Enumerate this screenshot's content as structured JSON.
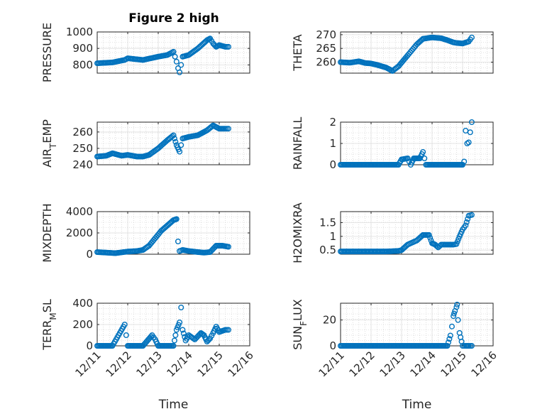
{
  "figure": {
    "title": "Figure 2 high",
    "marker_color": "#0072bd"
  },
  "chart_data": [
    {
      "type": "scatter",
      "title": "Figure 2 high",
      "ylabel": "PRESSURE",
      "xlabel": "",
      "xlim": [
        0,
        5
      ],
      "ylim": [
        750,
        1000
      ],
      "yticks": [
        800,
        900,
        1000
      ],
      "xticks": [
        "12/11",
        "12/12",
        "12/13",
        "12/14",
        "12/15",
        "12/16"
      ],
      "x": [
        0,
        0.5,
        0.9,
        1.0,
        1.5,
        2.0,
        2.3,
        2.5,
        2.55,
        2.6,
        2.65,
        2.7,
        2.75,
        2.8,
        3.0,
        3.3,
        3.6,
        3.7,
        3.8,
        3.9,
        4.0,
        4.2,
        4.3
      ],
      "y": [
        810,
        815,
        830,
        840,
        830,
        850,
        860,
        880,
        850,
        820,
        780,
        755,
        800,
        850,
        860,
        900,
        950,
        960,
        930,
        910,
        920,
        910,
        910
      ]
    },
    {
      "type": "scatter",
      "ylabel": "THETA",
      "xlabel": "",
      "xlim": [
        0,
        5
      ],
      "ylim": [
        256,
        271
      ],
      "yticks": [
        260,
        265,
        270
      ],
      "xticks": [
        "12/11",
        "12/12",
        "12/13",
        "12/14",
        "12/15",
        "12/16"
      ],
      "x": [
        0,
        0.3,
        0.6,
        0.8,
        1.0,
        1.2,
        1.5,
        1.7,
        1.9,
        2.2,
        2.5,
        2.7,
        3.0,
        3.3,
        3.5,
        3.7,
        3.8,
        4.0,
        4.2,
        4.3
      ],
      "y": [
        260,
        259.8,
        260.3,
        259.7,
        259.5,
        259.0,
        258.0,
        256.8,
        258.5,
        262.5,
        266.5,
        268.5,
        269,
        268.7,
        268.0,
        267.2,
        267.0,
        266.8,
        267.5,
        269
      ]
    },
    {
      "type": "scatter",
      "ylabel": "AIR_TEMP",
      "xlabel": "",
      "xlim": [
        0,
        5
      ],
      "ylim": [
        240,
        266
      ],
      "yticks": [
        240,
        250,
        260
      ],
      "xticks": [
        "12/11",
        "12/12",
        "12/13",
        "12/14",
        "12/15",
        "12/16"
      ],
      "x": [
        0,
        0.3,
        0.5,
        0.8,
        1.0,
        1.3,
        1.5,
        1.7,
        2.0,
        2.3,
        2.5,
        2.6,
        2.7,
        2.8,
        3.0,
        3.3,
        3.6,
        3.8,
        4.0,
        4.2,
        4.3
      ],
      "y": [
        245,
        245.5,
        247,
        245.5,
        246,
        245,
        245,
        246,
        250,
        255,
        258,
        252,
        248,
        256,
        257,
        258,
        261,
        264,
        262,
        262,
        262
      ]
    },
    {
      "type": "scatter",
      "ylabel": "RAINFALL",
      "xlabel": "",
      "xlim": [
        0,
        5
      ],
      "ylim": [
        0,
        2
      ],
      "yticks": [
        0,
        1,
        2
      ],
      "xticks": [
        "12/11",
        "12/12",
        "12/13",
        "12/14",
        "12/15",
        "12/16"
      ],
      "x": [
        0,
        0.5,
        1.0,
        1.5,
        1.9,
        2.0,
        2.2,
        2.3,
        2.4,
        2.5,
        2.6,
        2.7,
        2.8,
        3.0,
        3.5,
        3.9,
        4.0,
        4.05,
        4.1,
        4.15,
        4.2,
        4.3
      ],
      "y": [
        0,
        0,
        0,
        0,
        0,
        0.25,
        0.3,
        0,
        0.3,
        0.3,
        0.3,
        0.6,
        0,
        0,
        0,
        0,
        0,
        0.15,
        1.6,
        1.0,
        1.05,
        2.0
      ]
    },
    {
      "type": "scatter",
      "ylabel": "MIXDEPTH",
      "xlabel": "",
      "xlim": [
        0,
        5
      ],
      "ylim": [
        0,
        4000
      ],
      "yticks": [
        0,
        2000,
        4000
      ],
      "xticks": [
        "12/11",
        "12/12",
        "12/13",
        "12/14",
        "12/15",
        "12/16"
      ],
      "x": [
        0,
        0.3,
        0.6,
        1.0,
        1.3,
        1.5,
        1.7,
        1.9,
        2.1,
        2.3,
        2.5,
        2.6,
        2.65,
        2.7,
        2.8,
        3.0,
        3.3,
        3.5,
        3.7,
        3.9,
        4.1,
        4.3
      ],
      "y": [
        200,
        150,
        100,
        250,
        300,
        400,
        800,
        1500,
        2200,
        2700,
        3200,
        3300,
        1200,
        300,
        400,
        300,
        200,
        150,
        200,
        800,
        800,
        700
      ]
    },
    {
      "type": "scatter",
      "ylabel": "H2OMIXRA",
      "xlabel": "",
      "xlim": [
        0,
        5
      ],
      "ylim": [
        0.35,
        1.9
      ],
      "yticks": [
        0.5,
        1,
        1.5
      ],
      "xticks": [
        "12/11",
        "12/12",
        "12/13",
        "12/14",
        "12/15",
        "12/16"
      ],
      "x": [
        0,
        0.5,
        1.0,
        1.5,
        1.9,
        2.0,
        2.2,
        2.5,
        2.7,
        2.9,
        3.0,
        3.1,
        3.2,
        3.3,
        3.5,
        3.7,
        3.8,
        3.9,
        4.0,
        4.1,
        4.2,
        4.3
      ],
      "y": [
        0.45,
        0.45,
        0.45,
        0.45,
        0.47,
        0.5,
        0.7,
        0.85,
        1.05,
        1.05,
        0.75,
        0.7,
        0.6,
        0.7,
        0.7,
        0.7,
        0.72,
        1.0,
        1.25,
        1.4,
        1.75,
        1.78
      ]
    },
    {
      "type": "scatter",
      "ylabel": "TERR_MSL",
      "xlabel": "Time",
      "xlim": [
        0,
        5
      ],
      "ylim": [
        0,
        400
      ],
      "yticks": [
        0,
        200,
        400
      ],
      "xticks": [
        "12/11",
        "12/12",
        "12/13",
        "12/14",
        "12/15",
        "12/16"
      ],
      "x": [
        0,
        0.5,
        0.9,
        1.0,
        1.5,
        1.8,
        1.9,
        2.0,
        2.5,
        2.6,
        2.7,
        2.75,
        2.8,
        2.9,
        3.0,
        3.2,
        3.4,
        3.5,
        3.6,
        3.7,
        3.8,
        3.9,
        4.0,
        4.2,
        4.3
      ],
      "y": [
        0,
        0,
        200,
        0,
        0,
        100,
        60,
        0,
        0,
        150,
        220,
        360,
        150,
        50,
        100,
        60,
        120,
        100,
        40,
        70,
        120,
        180,
        130,
        150,
        150
      ]
    },
    {
      "type": "scatter",
      "ylabel": "SUN_FLUX",
      "xlabel": "Time",
      "xlim": [
        0,
        5
      ],
      "ylim": [
        0,
        33
      ],
      "yticks": [
        0,
        20
      ],
      "xticks": [
        "12/11",
        "12/12",
        "12/13",
        "12/14",
        "12/15",
        "12/16"
      ],
      "x": [
        0,
        0.5,
        1.0,
        1.5,
        2.0,
        2.5,
        3.0,
        3.5,
        3.6,
        3.65,
        3.7,
        3.72,
        3.75,
        3.8,
        3.82,
        3.85,
        3.9,
        4.0,
        4.1,
        4.2,
        4.3
      ],
      "y": [
        0,
        0,
        0,
        0,
        0,
        0,
        0,
        0,
        8,
        15,
        23,
        25,
        27,
        30,
        32,
        20,
        10,
        0,
        0,
        0,
        0
      ]
    }
  ]
}
